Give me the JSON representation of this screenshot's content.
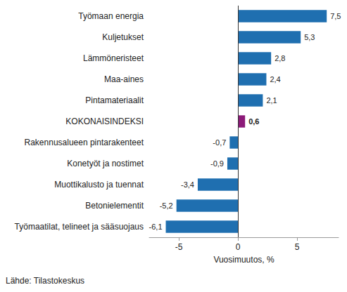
{
  "chart_data": {
    "type": "bar",
    "orientation": "horizontal",
    "categories": [
      "Työmaan energia",
      "Kuljetukset",
      "Lämmöneristeet",
      "Maa-aines",
      "Pintamateriaalit",
      "KOKONAISINDEKSI",
      "Rakennusalueen pintarakenteet",
      "Konetyöt ja nostimet",
      "Muottikalusto ja tuennat",
      "Betonielementit",
      "Työmaatilat, telineet ja sääsuojaus"
    ],
    "values": [
      7.5,
      5.3,
      2.8,
      2.4,
      2.1,
      0.6,
      -0.7,
      -0.9,
      -3.4,
      -5.2,
      -6.1
    ],
    "value_labels": [
      "7,5",
      "5,3",
      "2,8",
      "2,4",
      "2,1",
      "0,6",
      "-0,7",
      "-0,9",
      "-3,4",
      "-5,2",
      "-6,1"
    ],
    "colors": [
      "#1f6fb0",
      "#1f6fb0",
      "#1f6fb0",
      "#1f6fb0",
      "#1f6fb0",
      "#8c1a78",
      "#1f6fb0",
      "#1f6fb0",
      "#1f6fb0",
      "#1f6fb0",
      "#1f6fb0"
    ],
    "data_labels": true,
    "xlabel": "Vuosimuutos, %",
    "xlim": [
      -7.5,
      8.5
    ],
    "xticks": [
      -5,
      0,
      5
    ],
    "grid": false,
    "annotations": [
      "Lähde: Tilastokeskus"
    ]
  }
}
